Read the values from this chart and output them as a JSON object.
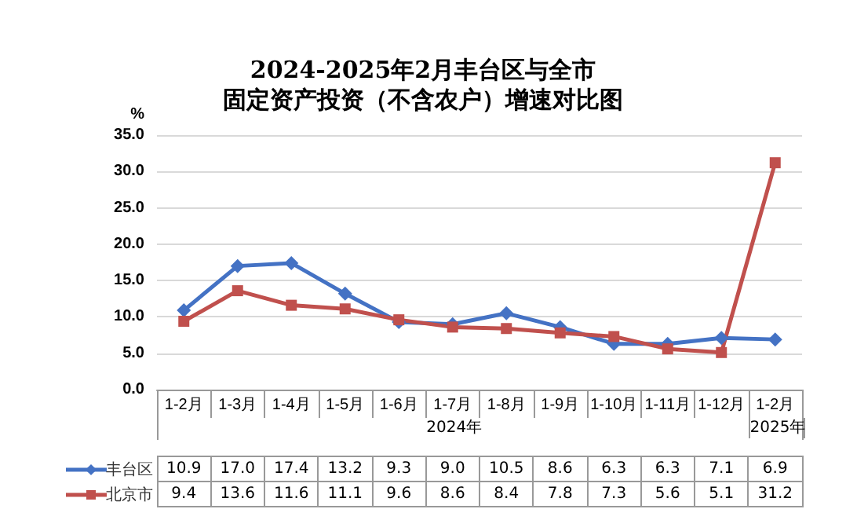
{
  "chart_data": {
    "type": "line",
    "title": "2024-2025年2月丰台区与全市",
    "subtitle": "固定资产投资（不含农户）增速对比图",
    "ylabel": "%",
    "categories": [
      "1-2月",
      "1-3月",
      "1-4月",
      "1-5月",
      "1-6月",
      "1-7月",
      "1-8月",
      "1-9月",
      "1-10月",
      "1-11月",
      "1-12月",
      "1-2月"
    ],
    "series": [
      {
        "name": "丰台区",
        "color": "#4472c4",
        "marker": "diamond",
        "values": [
          10.9,
          17.0,
          17.4,
          13.2,
          9.3,
          9.0,
          10.5,
          8.6,
          6.3,
          6.3,
          7.1,
          6.9
        ],
        "value_labels": [
          "10.9",
          "17.0",
          "17.4",
          "13.2",
          "9.3",
          "9.0",
          "10.5",
          "8.6",
          "6.3",
          "6.3",
          "7.1",
          "6.9"
        ]
      },
      {
        "name": "北京市",
        "color": "#c0504d",
        "marker": "square",
        "values": [
          9.4,
          13.6,
          11.6,
          11.1,
          9.6,
          8.6,
          8.4,
          7.8,
          7.3,
          5.6,
          5.1,
          31.2
        ],
        "value_labels": [
          "9.4",
          "13.6",
          "11.6",
          "11.1",
          "9.6",
          "8.6",
          "8.4",
          "7.8",
          "7.3",
          "5.6",
          "5.1",
          "31.2"
        ]
      }
    ],
    "ylim": [
      0,
      35
    ],
    "yticks": [
      {
        "value": 0,
        "label": "0.0"
      },
      {
        "value": 5,
        "label": "5.0"
      },
      {
        "value": 10,
        "label": "10.0"
      },
      {
        "value": 15,
        "label": "15.0"
      },
      {
        "value": 20,
        "label": "20.0"
      },
      {
        "value": 25,
        "label": "25.0"
      },
      {
        "value": 30,
        "label": "30.0"
      },
      {
        "value": 35,
        "label": "35.0"
      }
    ],
    "grid": "y",
    "legend": "bottom left",
    "annotations": [
      "2024年",
      "2025年"
    ]
  }
}
